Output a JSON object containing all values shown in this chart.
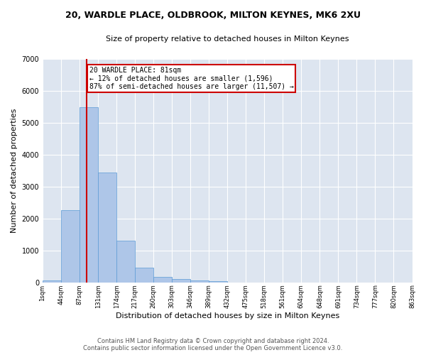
{
  "title": "20, WARDLE PLACE, OLDBROOK, MILTON KEYNES, MK6 2XU",
  "subtitle": "Size of property relative to detached houses in Milton Keynes",
  "xlabel": "Distribution of detached houses by size in Milton Keynes",
  "ylabel": "Number of detached properties",
  "footer_line1": "Contains HM Land Registry data © Crown copyright and database right 2024.",
  "footer_line2": "Contains public sector information licensed under the Open Government Licence v3.0.",
  "property_label": "20 WARDLE PLACE: 81sqm",
  "annotation_line1": "← 12% of detached houses are smaller (1,596)",
  "annotation_line2": "87% of semi-detached houses are larger (11,507) →",
  "property_size_bin": 1.5,
  "bar_values": [
    70,
    2270,
    5480,
    3450,
    1310,
    470,
    160,
    100,
    65,
    40,
    0,
    0,
    0,
    0,
    0,
    0,
    0,
    0,
    0,
    0
  ],
  "bar_color": "#aec6e8",
  "bar_edge_color": "#5b9bd5",
  "vline_color": "#cc0000",
  "annotation_box_color": "#cc0000",
  "background_color": "#dde5f0",
  "ylim": [
    0,
    7000
  ],
  "tick_labels": [
    "1sqm",
    "44sqm",
    "87sqm",
    "131sqm",
    "174sqm",
    "217sqm",
    "260sqm",
    "303sqm",
    "346sqm",
    "389sqm",
    "432sqm",
    "475sqm",
    "518sqm",
    "561sqm",
    "604sqm",
    "648sqm",
    "691sqm",
    "734sqm",
    "777sqm",
    "820sqm",
    "863sqm"
  ],
  "title_fontsize": 9,
  "subtitle_fontsize": 8,
  "ylabel_fontsize": 8,
  "xlabel_fontsize": 8,
  "tick_fontsize": 6,
  "ytick_fontsize": 7,
  "footer_fontsize": 6,
  "annot_fontsize": 7
}
